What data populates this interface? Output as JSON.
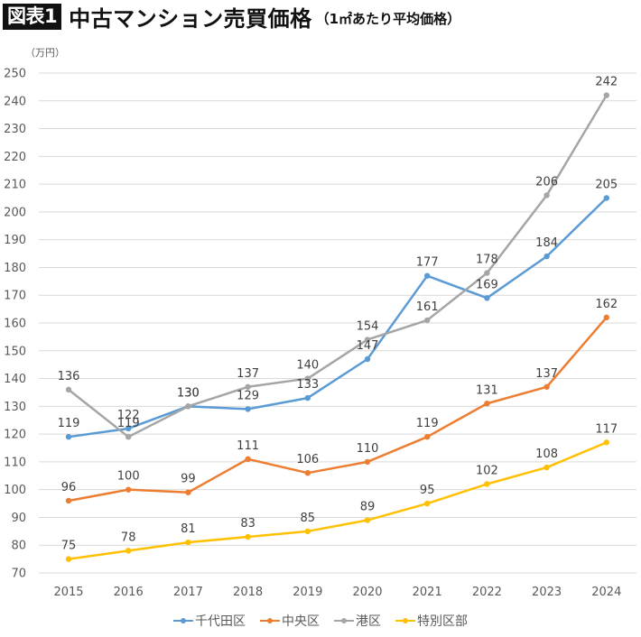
{
  "header": {
    "badge": "図表1",
    "title": "中古マンション売買価格",
    "subtitle": "（1㎡あたり平均価格）"
  },
  "chart_data": {
    "type": "line",
    "title": "中古マンション売買価格（1㎡あたり平均価格）",
    "unit_label": "（万円）",
    "xlabel": "",
    "ylabel": "（万円）",
    "ylim": [
      70,
      250
    ],
    "yticks": [
      70,
      80,
      90,
      100,
      110,
      120,
      130,
      140,
      150,
      160,
      170,
      180,
      190,
      200,
      210,
      220,
      230,
      240,
      250
    ],
    "grid": true,
    "legend_position": "bottom",
    "categories": [
      "2015",
      "2016",
      "2017",
      "2018",
      "2019",
      "2020",
      "2021",
      "2022",
      "2023",
      "2024"
    ],
    "series": [
      {
        "name": "千代田区",
        "color": "#5b9bd5",
        "values": [
          119,
          122,
          130,
          129,
          133,
          147,
          177,
          169,
          184,
          205
        ]
      },
      {
        "name": "中央区",
        "color": "#ed7d31",
        "values": [
          96,
          100,
          99,
          111,
          106,
          110,
          119,
          131,
          137,
          162
        ]
      },
      {
        "name": "港区",
        "color": "#a5a5a5",
        "values": [
          136,
          119,
          130,
          137,
          140,
          154,
          161,
          178,
          206,
          242
        ]
      },
      {
        "name": "特別区部",
        "color": "#ffc000",
        "values": [
          75,
          78,
          81,
          83,
          85,
          89,
          95,
          102,
          108,
          117
        ]
      }
    ]
  }
}
